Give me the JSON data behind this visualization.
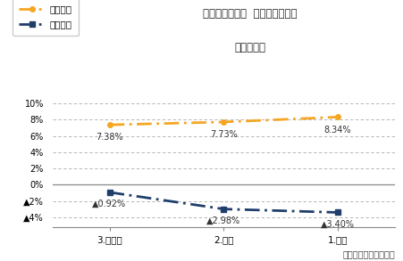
{
  "title_line1": "倒産・生存企業  財務データ比較",
  "title_line2": "経常利益率",
  "categories": [
    "3.前々期",
    "2.前期",
    "1.最新"
  ],
  "survivor_values": [
    0.0738,
    0.0773,
    0.0834
  ],
  "survivor_labels": [
    "7.38%",
    "7.73%",
    "8.34%"
  ],
  "bankrupt_values": [
    -0.0092,
    -0.0298,
    -0.034
  ],
  "bankrupt_labels": [
    "▲0.92%",
    "▲2.98%",
    "▲3.40%"
  ],
  "survivor_color": "#F5A623",
  "bankrupt_color": "#1F3E6B",
  "legend_survivor": "生存企業",
  "legend_bankrupt": "倒産企業",
  "yticks": [
    -0.04,
    -0.02,
    0.0,
    0.02,
    0.04,
    0.06,
    0.08,
    0.1
  ],
  "ytick_labels": [
    "▲4%",
    "▲2%",
    "0%",
    "2%",
    "4%",
    "6%",
    "8%",
    "10%"
  ],
  "ylim": [
    -0.052,
    0.115
  ],
  "footer": "東京商工リサーチ調べ",
  "background_color": "#FFFFFF",
  "grid_color": "#AAAAAA",
  "survivor_label_yoffsets": [
    -0.01,
    -0.01,
    -0.01
  ],
  "bankrupt_label_yoffsets": [
    -0.009,
    -0.009,
    -0.009
  ]
}
